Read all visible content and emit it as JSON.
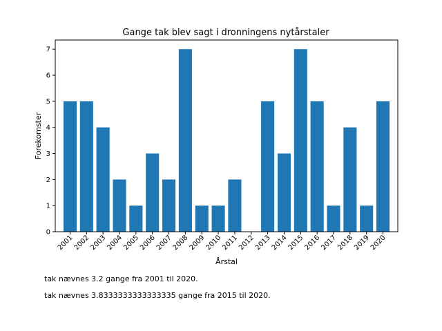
{
  "chart_data": {
    "type": "bar",
    "title": "Gange tak blev sagt i dronningens nytårstaler",
    "xlabel": "Årstal",
    "ylabel": "Forekomster",
    "categories": [
      "2001",
      "2002",
      "2003",
      "2004",
      "2005",
      "2006",
      "2007",
      "2008",
      "2009",
      "2010",
      "2011",
      "2012",
      "2013",
      "2014",
      "2015",
      "2016",
      "2017",
      "2018",
      "2019",
      "2020"
    ],
    "values": [
      5,
      5,
      4,
      2,
      1,
      3,
      2,
      7,
      1,
      1,
      2,
      0,
      5,
      3,
      7,
      5,
      1,
      4,
      1,
      5
    ],
    "ylim": [
      0,
      7.35
    ],
    "yticks": [
      0,
      1,
      2,
      3,
      4,
      5,
      6,
      7
    ],
    "grid": false,
    "bar_color": "#1f77b4"
  },
  "notes": [
    "tak nævnes 3.2 gange fra 2001 til 2020.",
    "tak nævnes 3.8333333333333335 gange fra 2015 til 2020."
  ]
}
